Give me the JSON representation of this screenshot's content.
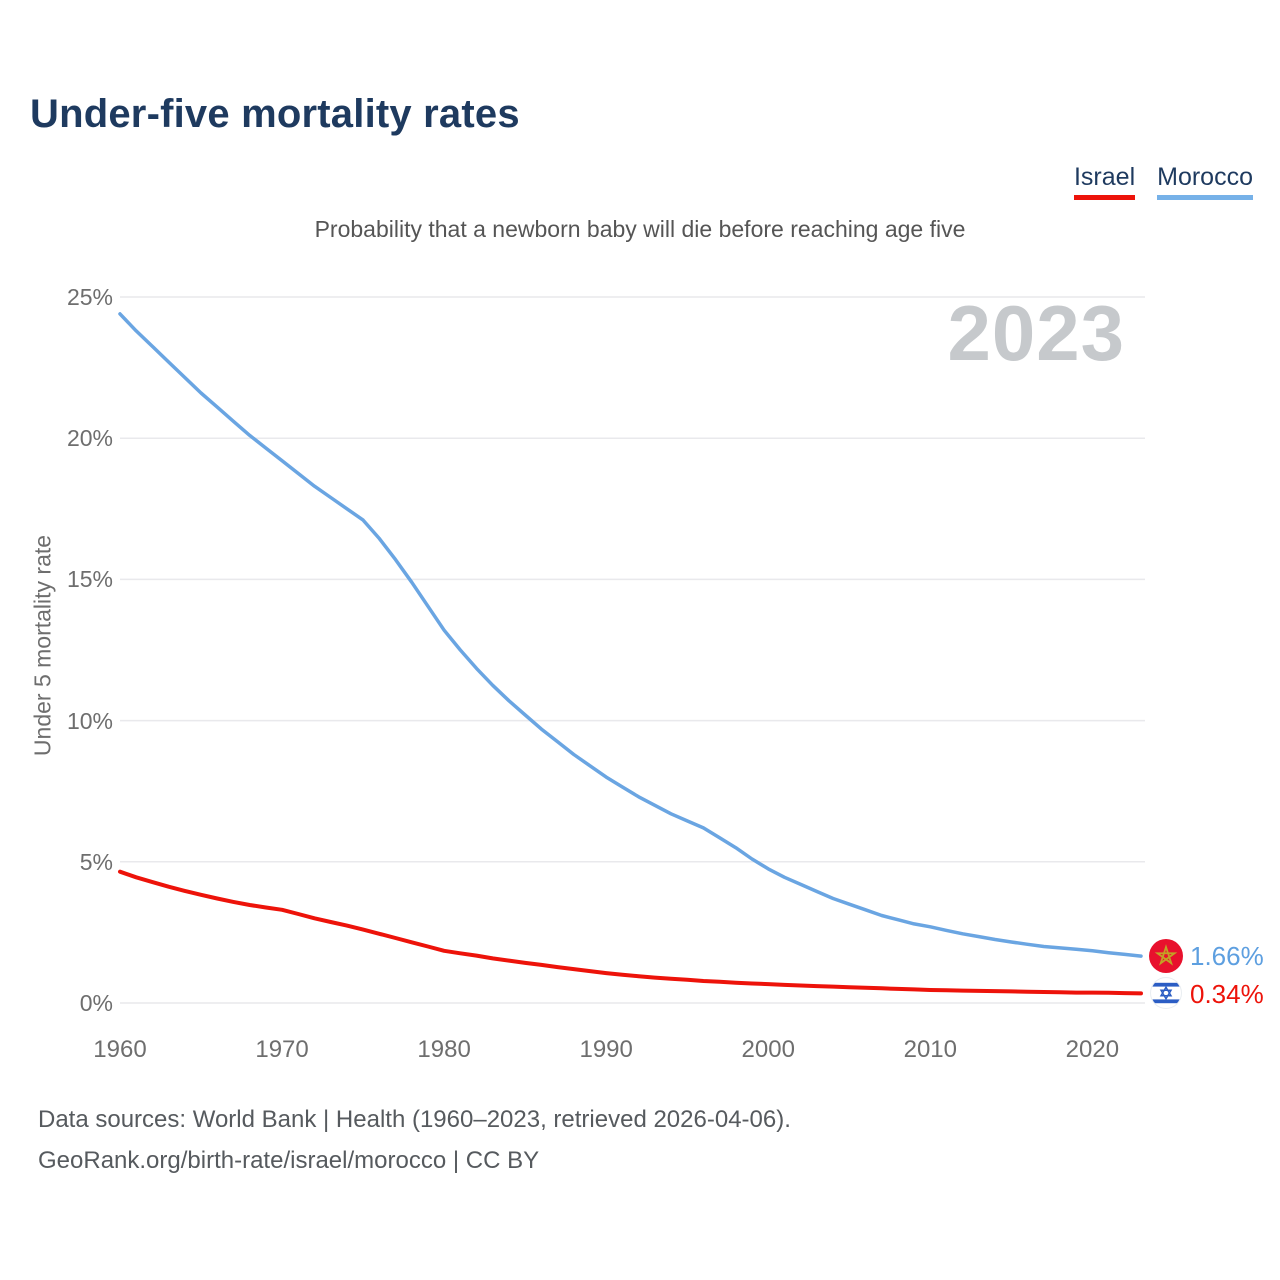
{
  "page": {
    "title": "Under-five mortality rates",
    "subtitle": "Probability that a newborn baby will die before reaching age five",
    "watermark": "2023"
  },
  "legend": {
    "items": [
      {
        "label": "Israel",
        "color": "#ed130a"
      },
      {
        "label": "Morocco",
        "color": "#76b1e8"
      }
    ]
  },
  "footer": {
    "line1": "Data sources: World Bank | Health (1960–2023, retrieved 2026-04-06).",
    "line2": "GeoRank.org/birth-rate/israel/morocco | CC BY"
  },
  "chart_data": {
    "type": "line",
    "title": "Under-five mortality rates",
    "subtitle": "Probability that a newborn baby will die before reaching age five",
    "xlabel": "",
    "ylabel": "Under 5 mortality rate",
    "xlim": [
      1960,
      2023
    ],
    "ylim": [
      0,
      25
    ],
    "grid": "horizontal",
    "legend_position": "top-right",
    "yticks": [
      {
        "label": "0%",
        "value": 0
      },
      {
        "label": "5%",
        "value": 5
      },
      {
        "label": "10%",
        "value": 10
      },
      {
        "label": "15%",
        "value": 15
      },
      {
        "label": "20%",
        "value": 20
      },
      {
        "label": "25%",
        "value": 25
      }
    ],
    "xticks": [
      {
        "label": "1960",
        "value": 1960
      },
      {
        "label": "1970",
        "value": 1970
      },
      {
        "label": "1980",
        "value": 1980
      },
      {
        "label": "1990",
        "value": 1990
      },
      {
        "label": "2000",
        "value": 2000
      },
      {
        "label": "2010",
        "value": 2010
      },
      {
        "label": "2020",
        "value": 2020
      }
    ],
    "series": [
      {
        "name": "Morocco",
        "color": "#6aa5e2",
        "end_label": "1.66%",
        "end_label_color": "#5d9fe0",
        "x": [
          1960,
          1961,
          1962,
          1963,
          1964,
          1965,
          1966,
          1967,
          1968,
          1969,
          1970,
          1971,
          1972,
          1973,
          1974,
          1975,
          1976,
          1977,
          1978,
          1979,
          1980,
          1981,
          1982,
          1983,
          1984,
          1985,
          1986,
          1987,
          1988,
          1989,
          1990,
          1991,
          1992,
          1993,
          1994,
          1995,
          1996,
          1997,
          1998,
          1999,
          2000,
          2001,
          2002,
          2003,
          2004,
          2005,
          2006,
          2007,
          2008,
          2009,
          2010,
          2011,
          2012,
          2013,
          2014,
          2015,
          2016,
          2017,
          2018,
          2019,
          2020,
          2021,
          2022,
          2023
        ],
        "values": [
          24.4,
          23.8,
          23.25,
          22.7,
          22.15,
          21.6,
          21.1,
          20.6,
          20.1,
          19.65,
          19.2,
          18.75,
          18.3,
          17.9,
          17.5,
          17.1,
          16.45,
          15.7,
          14.9,
          14.05,
          13.2,
          12.5,
          11.85,
          11.25,
          10.7,
          10.2,
          9.7,
          9.25,
          8.8,
          8.4,
          8.0,
          7.65,
          7.3,
          7.0,
          6.7,
          6.45,
          6.2,
          5.85,
          5.5,
          5.1,
          4.75,
          4.45,
          4.2,
          3.95,
          3.7,
          3.5,
          3.3,
          3.1,
          2.95,
          2.8,
          2.7,
          2.57,
          2.45,
          2.35,
          2.25,
          2.16,
          2.08,
          2.0,
          1.95,
          1.9,
          1.85,
          1.78,
          1.72,
          1.66
        ]
      },
      {
        "name": "Israel",
        "color": "#ed130a",
        "end_label": "0.34%",
        "end_label_color": "#ed130a",
        "x": [
          1960,
          1961,
          1962,
          1963,
          1964,
          1965,
          1966,
          1967,
          1968,
          1969,
          1970,
          1971,
          1972,
          1973,
          1974,
          1975,
          1976,
          1977,
          1978,
          1979,
          1980,
          1981,
          1982,
          1983,
          1984,
          1985,
          1986,
          1987,
          1988,
          1989,
          1990,
          1991,
          1992,
          1993,
          1994,
          1995,
          1996,
          1997,
          1998,
          1999,
          2000,
          2001,
          2002,
          2003,
          2004,
          2005,
          2006,
          2007,
          2008,
          2009,
          2010,
          2011,
          2012,
          2013,
          2014,
          2015,
          2016,
          2017,
          2018,
          2019,
          2020,
          2021,
          2022,
          2023
        ],
        "values": [
          4.65,
          4.45,
          4.28,
          4.12,
          3.97,
          3.83,
          3.7,
          3.58,
          3.47,
          3.38,
          3.3,
          3.15,
          3.0,
          2.87,
          2.74,
          2.6,
          2.45,
          2.3,
          2.15,
          2.0,
          1.85,
          1.76,
          1.68,
          1.58,
          1.5,
          1.42,
          1.35,
          1.27,
          1.2,
          1.13,
          1.06,
          1.0,
          0.95,
          0.9,
          0.86,
          0.82,
          0.78,
          0.75,
          0.72,
          0.69,
          0.67,
          0.64,
          0.62,
          0.6,
          0.58,
          0.56,
          0.54,
          0.52,
          0.5,
          0.48,
          0.46,
          0.45,
          0.44,
          0.43,
          0.42,
          0.41,
          0.4,
          0.39,
          0.38,
          0.37,
          0.37,
          0.36,
          0.35,
          0.34
        ]
      }
    ]
  }
}
